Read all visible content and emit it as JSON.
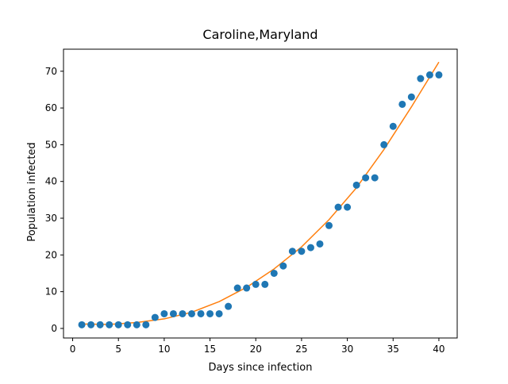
{
  "chart_data": {
    "type": "scatter",
    "title": "Caroline,Maryland",
    "xlabel": "Days since infection",
    "ylabel": "Population infected",
    "xlim": [
      -1.0,
      42.0
    ],
    "ylim": [
      -2.6,
      76.0
    ],
    "xticks": [
      0,
      5,
      10,
      15,
      20,
      25,
      30,
      35,
      40
    ],
    "yticks": [
      0,
      10,
      20,
      30,
      40,
      50,
      60,
      70
    ],
    "grid": false,
    "series": [
      {
        "kind": "scatter",
        "color": "#1f77b4",
        "x": [
          1,
          2,
          3,
          4,
          5,
          6,
          7,
          8,
          9,
          10,
          11,
          12,
          13,
          14,
          15,
          16,
          17,
          18,
          19,
          20,
          21,
          22,
          23,
          24,
          25,
          26,
          27,
          28,
          29,
          30,
          31,
          32,
          33,
          34,
          35,
          36,
          37,
          38,
          39,
          40
        ],
        "y": [
          1,
          1,
          1,
          1,
          1,
          1,
          1,
          1,
          3,
          4,
          4,
          4,
          4,
          4,
          4,
          4,
          6,
          11,
          11,
          12,
          12,
          15,
          17,
          21,
          21,
          22,
          23,
          28,
          33,
          33,
          39,
          41,
          41,
          50,
          55,
          61,
          63,
          68,
          69,
          69
        ]
      },
      {
        "kind": "line",
        "color": "#ff7f0e",
        "x": [
          1,
          4,
          7,
          10,
          13,
          16,
          19,
          22,
          25,
          28,
          31,
          34,
          37,
          40
        ],
        "y": [
          1.2,
          1.1,
          1.6,
          2.6,
          4.4,
          7.3,
          11.2,
          16.2,
          22.2,
          29.6,
          38.3,
          48.7,
          60.3,
          72.5
        ]
      }
    ]
  }
}
